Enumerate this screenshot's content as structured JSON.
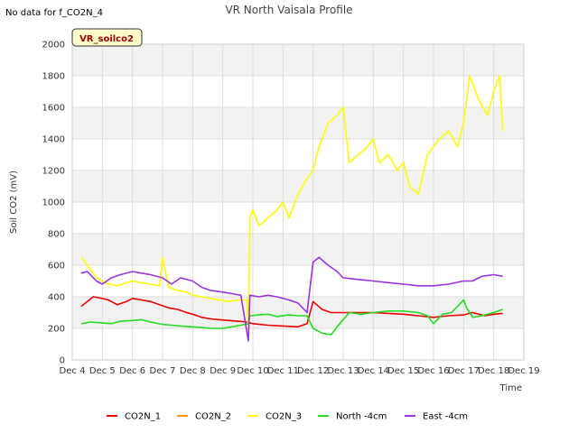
{
  "chart_data": {
    "type": "line",
    "title": "VR North Vaisala Profile",
    "note": "No data for f_CO2N_4",
    "badge": "VR_soilco2",
    "xlabel": "Time",
    "ylabel": "Soil CO2 (mV)",
    "xlim": [
      4,
      19
    ],
    "ylim": [
      0,
      2000
    ],
    "x_ticks": [
      {
        "v": 4,
        "label": "Dec 4"
      },
      {
        "v": 5,
        "label": "Dec 5"
      },
      {
        "v": 6,
        "label": "Dec 6"
      },
      {
        "v": 7,
        "label": "Dec 7"
      },
      {
        "v": 8,
        "label": "Dec 8"
      },
      {
        "v": 9,
        "label": "Dec 9"
      },
      {
        "v": 10,
        "label": "Dec 10"
      },
      {
        "v": 11,
        "label": "Dec 11"
      },
      {
        "v": 12,
        "label": "Dec 12"
      },
      {
        "v": 13,
        "label": "Dec 13"
      },
      {
        "v": 14,
        "label": "Dec 14"
      },
      {
        "v": 15,
        "label": "Dec 15"
      },
      {
        "v": 16,
        "label": "Dec 16"
      },
      {
        "v": 17,
        "label": "Dec 17"
      },
      {
        "v": 18,
        "label": "Dec 18"
      },
      {
        "v": 19,
        "label": "Dec 19"
      }
    ],
    "y_ticks": [
      0,
      200,
      400,
      600,
      800,
      1000,
      1200,
      1400,
      1600,
      1800,
      2000
    ],
    "grid": true,
    "legend_position": "bottom",
    "series": [
      {
        "name": "CO2N_1",
        "color": "#ee0000",
        "x": [
          4.3,
          4.5,
          4.7,
          5.0,
          5.2,
          5.5,
          5.8,
          6.0,
          6.3,
          6.6,
          6.9,
          7.2,
          7.5,
          7.8,
          8.0,
          8.3,
          8.6,
          8.9,
          9.2,
          9.5,
          9.8,
          10.0,
          10.5,
          11.0,
          11.5,
          11.8,
          12.0,
          12.3,
          12.6,
          13.0,
          13.5,
          14.0,
          14.5,
          15.0,
          15.5,
          16.0,
          16.5,
          17.0,
          17.3,
          17.7,
          18.0,
          18.3
        ],
        "y": [
          340,
          370,
          400,
          390,
          380,
          350,
          370,
          390,
          380,
          370,
          350,
          330,
          320,
          300,
          290,
          270,
          260,
          255,
          250,
          245,
          240,
          230,
          220,
          215,
          210,
          230,
          370,
          320,
          300,
          300,
          300,
          300,
          295,
          290,
          280,
          270,
          280,
          285,
          300,
          280,
          290,
          295
        ]
      },
      {
        "name": "CO2N_2",
        "color": "#ff9900",
        "x": [],
        "y": []
      },
      {
        "name": "CO2N_3",
        "color": "#ffff00",
        "x": [
          4.3,
          4.5,
          4.8,
          5.0,
          5.2,
          5.5,
          5.8,
          6.0,
          6.3,
          6.6,
          6.9,
          7.0,
          7.2,
          7.5,
          7.8,
          8.0,
          8.3,
          8.6,
          8.9,
          9.2,
          9.5,
          9.8,
          9.85,
          9.9,
          10.0,
          10.2,
          10.5,
          10.8,
          11.0,
          11.2,
          11.5,
          11.8,
          12.0,
          12.2,
          12.5,
          12.8,
          13.0,
          13.2,
          13.5,
          13.8,
          14.0,
          14.2,
          14.5,
          14.8,
          15.0,
          15.2,
          15.5,
          15.8,
          16.0,
          16.2,
          16.5,
          16.8,
          17.0,
          17.2,
          17.5,
          17.8,
          18.0,
          18.2,
          18.3
        ],
        "y": [
          650,
          600,
          520,
          500,
          480,
          470,
          490,
          500,
          490,
          480,
          470,
          650,
          460,
          440,
          430,
          410,
          400,
          390,
          380,
          370,
          380,
          380,
          150,
          900,
          950,
          850,
          900,
          950,
          1000,
          900,
          1050,
          1150,
          1200,
          1350,
          1500,
          1550,
          1600,
          1250,
          1300,
          1350,
          1400,
          1250,
          1300,
          1200,
          1250,
          1100,
          1050,
          1300,
          1350,
          1400,
          1450,
          1350,
          1500,
          1800,
          1650,
          1550,
          1700,
          1800,
          1450
        ]
      },
      {
        "name": "North -4cm",
        "color": "#22dd22",
        "x": [
          4.3,
          4.6,
          5.0,
          5.3,
          5.6,
          6.0,
          6.3,
          6.6,
          7.0,
          7.3,
          7.6,
          8.0,
          8.3,
          8.6,
          9.0,
          9.3,
          9.6,
          9.85,
          9.9,
          10.2,
          10.5,
          10.8,
          11.2,
          11.5,
          11.8,
          12.0,
          12.3,
          12.6,
          12.8,
          13.2,
          13.6,
          14.0,
          14.5,
          15.0,
          15.5,
          15.8,
          16.0,
          16.3,
          16.6,
          17.0,
          17.1,
          17.3,
          17.6,
          18.0,
          18.3
        ],
        "y": [
          230,
          240,
          235,
          230,
          245,
          250,
          255,
          240,
          225,
          220,
          215,
          210,
          205,
          200,
          200,
          210,
          220,
          230,
          280,
          285,
          290,
          275,
          285,
          280,
          280,
          200,
          170,
          160,
          210,
          300,
          290,
          300,
          310,
          310,
          300,
          280,
          230,
          290,
          300,
          380,
          330,
          270,
          280,
          300,
          320
        ]
      },
      {
        "name": "East -4cm",
        "color": "#9933dd",
        "x": [
          4.3,
          4.5,
          4.8,
          5.0,
          5.3,
          5.6,
          6.0,
          6.3,
          6.6,
          7.0,
          7.3,
          7.6,
          8.0,
          8.3,
          8.6,
          9.0,
          9.3,
          9.6,
          9.85,
          9.9,
          10.2,
          10.5,
          10.8,
          11.2,
          11.5,
          11.8,
          12.0,
          12.2,
          12.5,
          12.8,
          13.0,
          13.5,
          14.0,
          14.5,
          15.0,
          15.5,
          16.0,
          16.5,
          17.0,
          17.3,
          17.6,
          18.0,
          18.3
        ],
        "y": [
          550,
          560,
          500,
          480,
          520,
          540,
          560,
          550,
          540,
          520,
          480,
          520,
          500,
          460,
          440,
          430,
          420,
          410,
          120,
          410,
          400,
          410,
          400,
          380,
          360,
          300,
          620,
          650,
          600,
          560,
          520,
          510,
          500,
          490,
          480,
          470,
          470,
          480,
          500,
          500,
          530,
          540,
          530
        ]
      }
    ]
  }
}
